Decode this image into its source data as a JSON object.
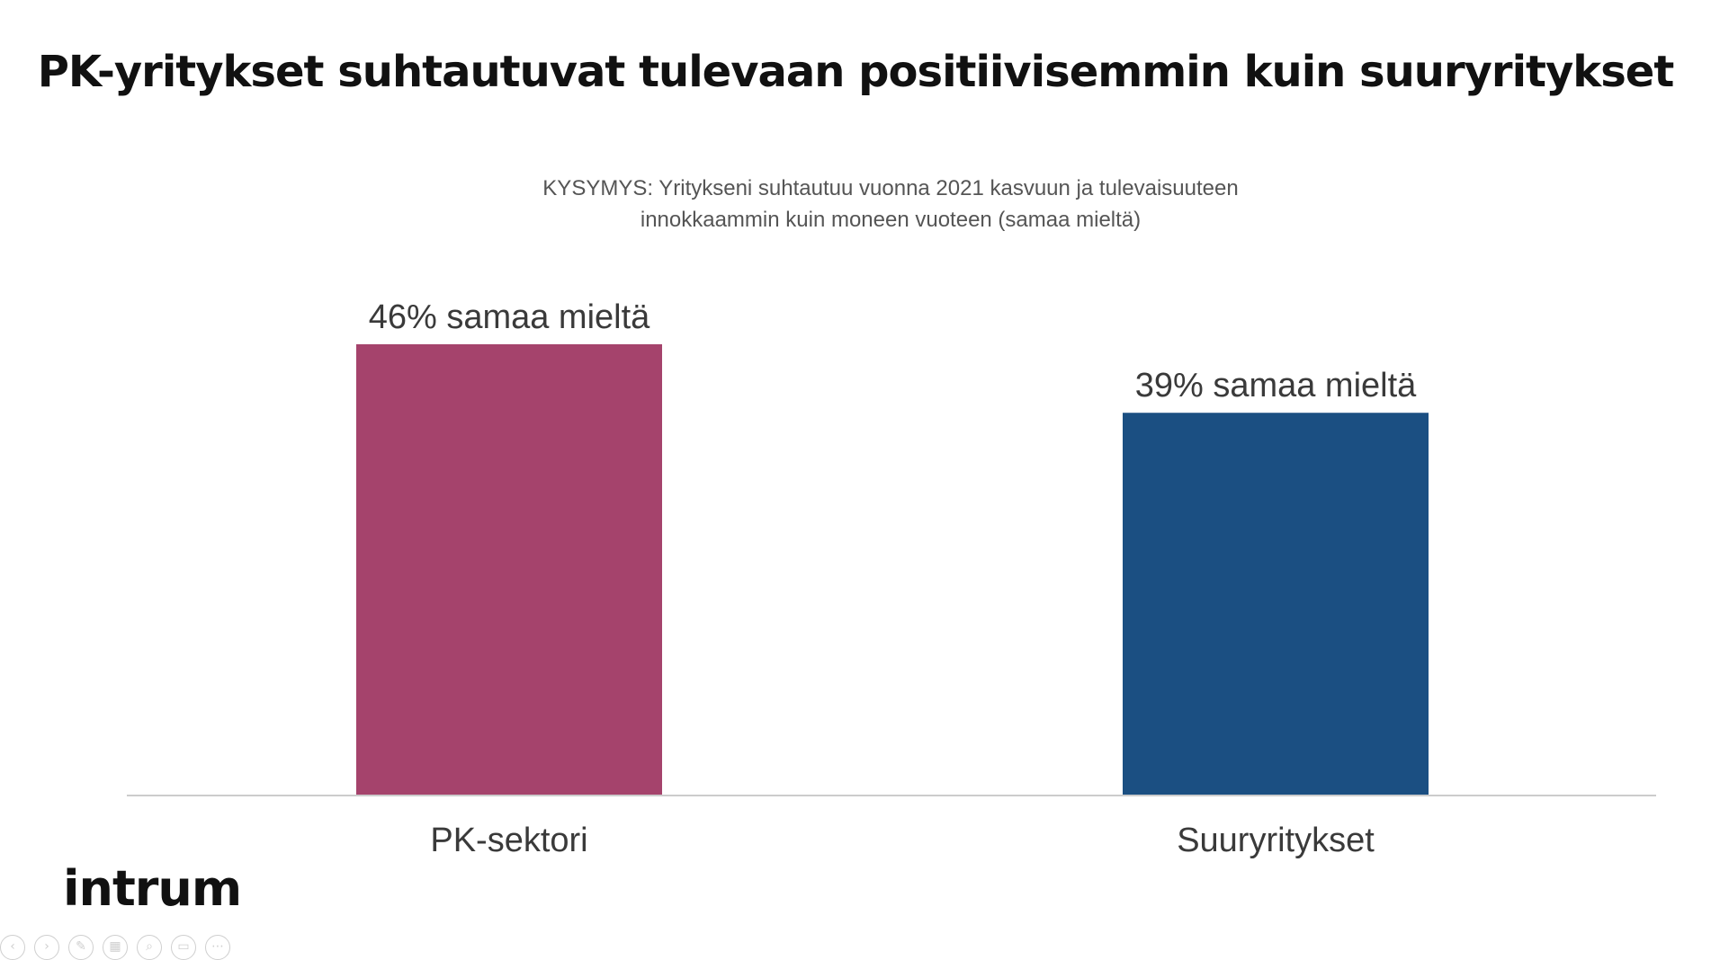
{
  "slide": {
    "title": "PK-yritykset suhtautuvat tulevaan positiivisemmin kuin suuryritykset",
    "question_line1": "KYSYMYS: Yritykseni suhtautuu vuonna 2021 kasvuun ja tulevaisuuteen",
    "question_line2": "innokkaammin kuin moneen vuoteen (samaa mieltä)",
    "logo_text": "intrum"
  },
  "chart_data": {
    "type": "bar",
    "categories": [
      "PK-sektori",
      "Suuryritykset"
    ],
    "values": [
      46,
      39
    ],
    "unit": "%",
    "data_labels": [
      "46% samaa mieltä",
      "39% samaa mieltä"
    ],
    "bar_colors": [
      "#A5436C",
      "#1B4F82"
    ],
    "grid": false,
    "legend": "none",
    "ylim": [
      0,
      46
    ]
  },
  "toolbar": {
    "icons": [
      "prev-icon",
      "next-icon",
      "pen-icon",
      "grid-icon",
      "zoom-icon",
      "subtitle-icon",
      "more-icon"
    ]
  }
}
